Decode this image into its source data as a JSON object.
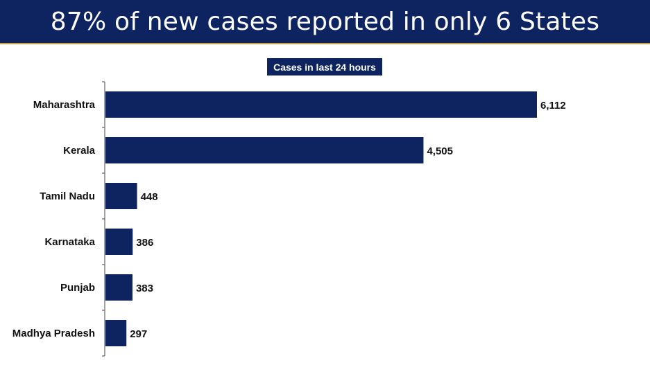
{
  "header": {
    "title": "87% of new cases reported in only 6 States"
  },
  "colors": {
    "bar": "#0d2461",
    "header_bg": "#0d2461",
    "accent_rule": "#c9a34a"
  },
  "chart_data": {
    "type": "bar",
    "orientation": "horizontal",
    "title": "Cases in last 24 hours",
    "categories": [
      "Maharashtra",
      "Kerala",
      "Tamil Nadu",
      "Karnataka",
      "Punjab",
      "Madhya Pradesh"
    ],
    "values": [
      6112,
      4505,
      448,
      386,
      383,
      297
    ],
    "value_labels": [
      "6,112",
      "4,505",
      "448",
      "386",
      "383",
      "297"
    ],
    "xlabel": "",
    "ylabel": "",
    "xlim": [
      0,
      6112
    ],
    "grid": false,
    "legend": "none"
  }
}
